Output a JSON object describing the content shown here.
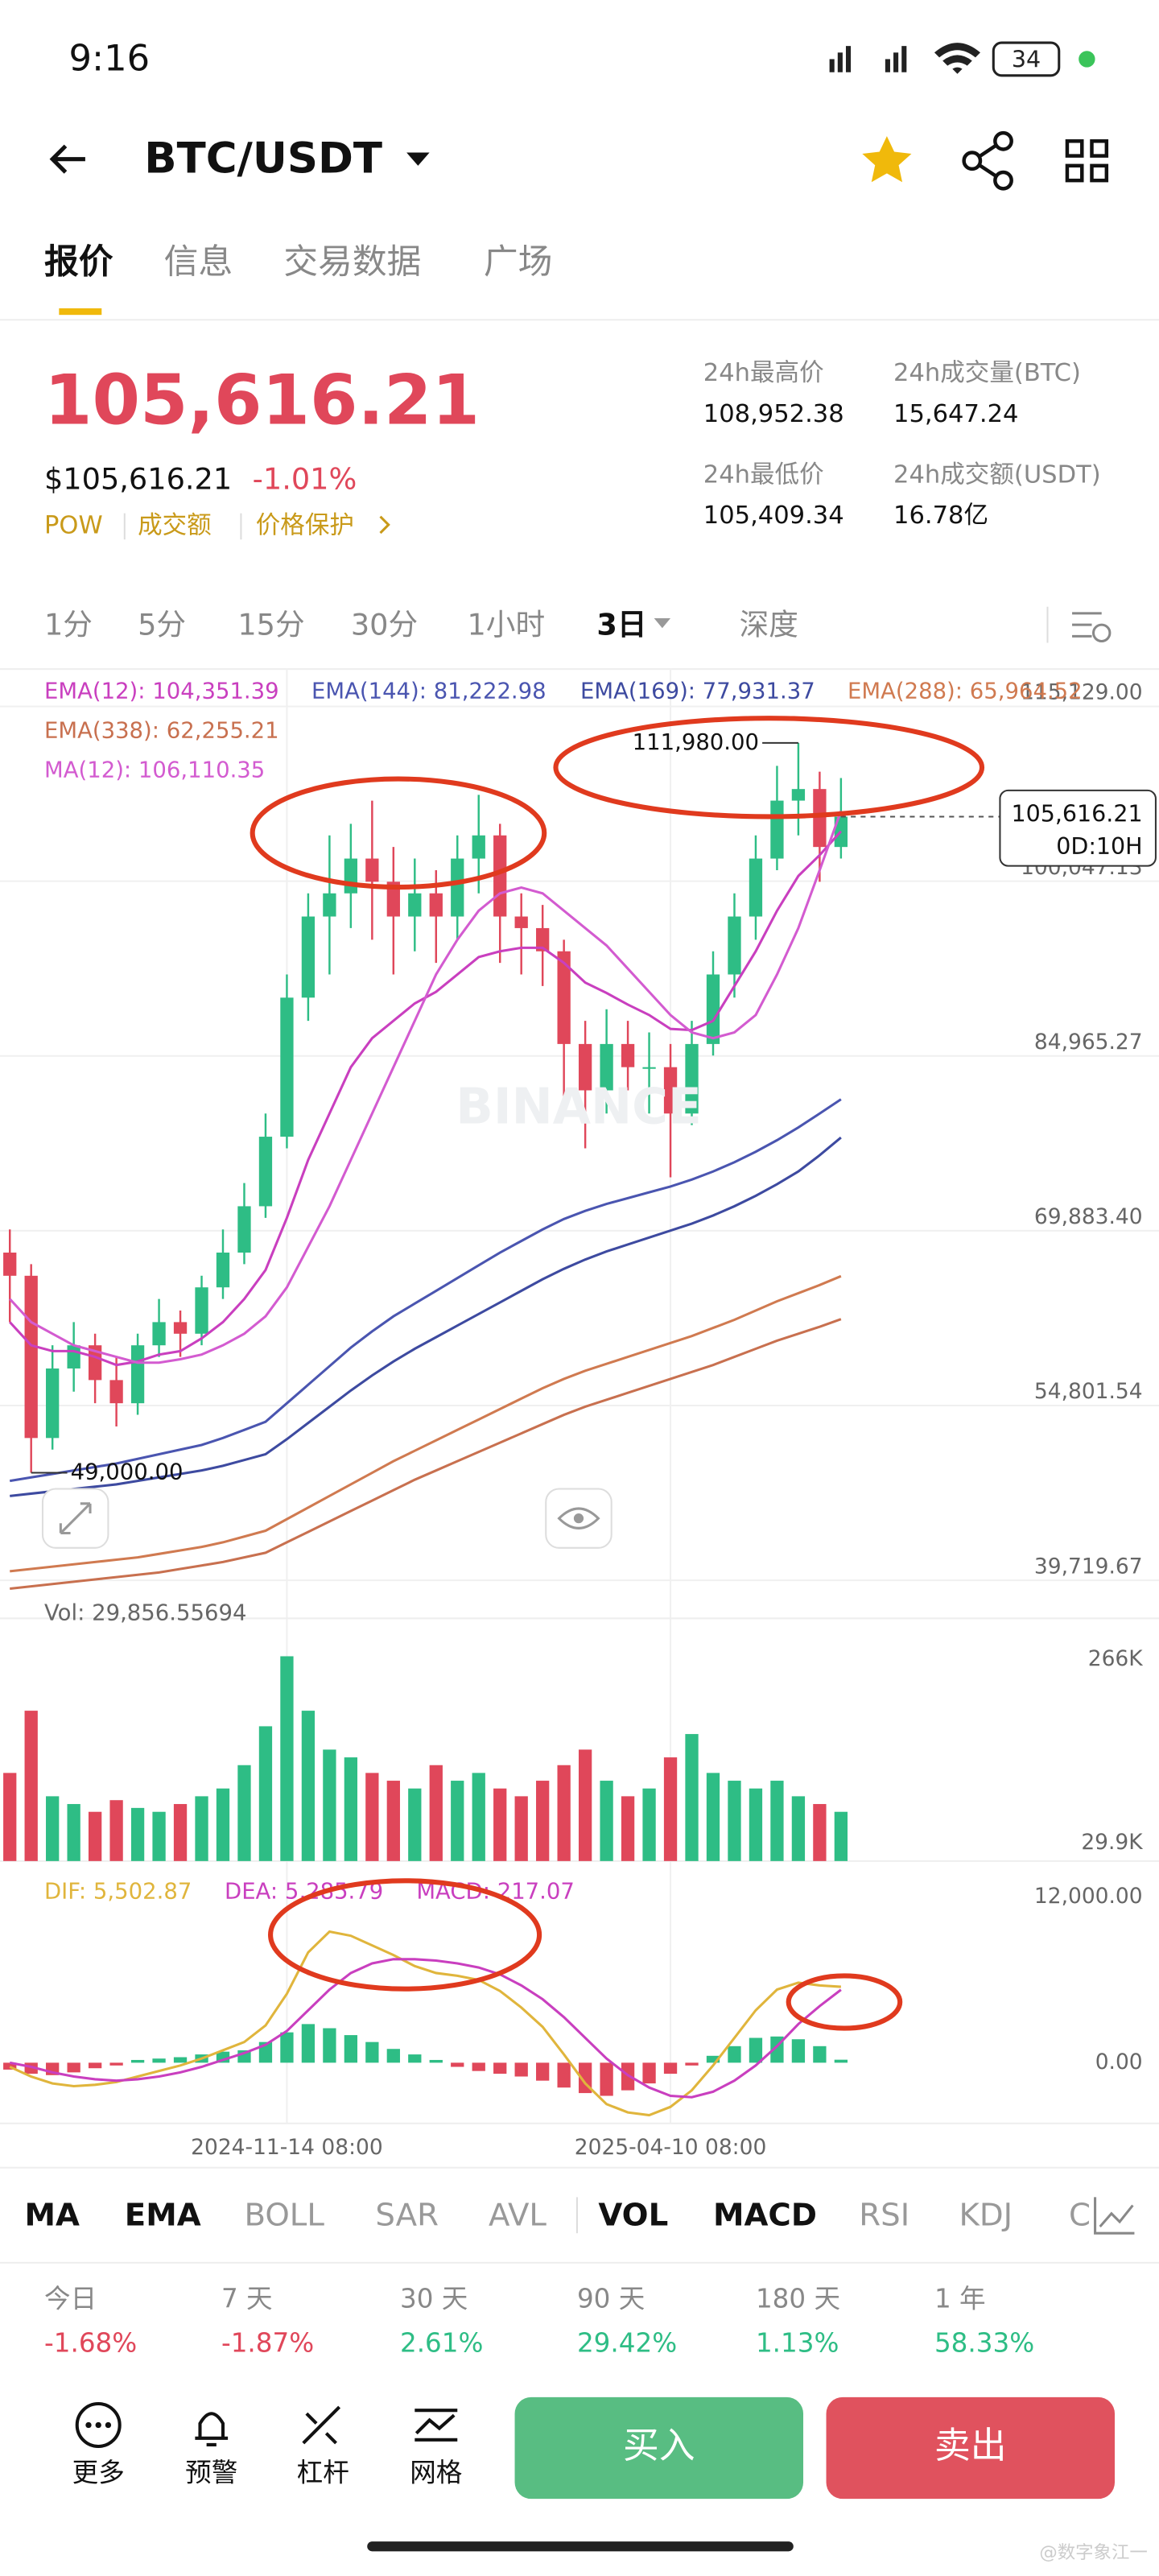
{
  "status": {
    "time": "9:16",
    "battery": "34"
  },
  "header": {
    "pair": "BTC/USDT"
  },
  "tabs": [
    "报价",
    "信息",
    "交易数据",
    "广场"
  ],
  "price": {
    "last": "105,616.21",
    "usd": "$105,616.21",
    "change": "-1.01%",
    "tags": [
      "POW",
      "成交额",
      "价格保护"
    ]
  },
  "stats": [
    {
      "label": "24h最高价",
      "value": "108,952.38"
    },
    {
      "label": "24h成交量(BTC)",
      "value": "15,647.24"
    },
    {
      "label": "24h最低价",
      "value": "105,409.34"
    },
    {
      "label": "24h成交额(USDT)",
      "value": "16.78亿"
    }
  ],
  "intervals": [
    "1分",
    "5分",
    "15分",
    "30分",
    "1小时",
    "3日",
    "深度"
  ],
  "chart_data": {
    "type": "candlestick",
    "watermark": "BINANCE",
    "up_color": "#2ebd85",
    "down_color": "#e0475a",
    "ylim": [
      38134,
      118354
    ],
    "yticks": [
      {
        "value": 39719.67,
        "label": "39,719.67"
      },
      {
        "value": 54801.54,
        "label": "54,801.54"
      },
      {
        "value": 69883.4,
        "label": "69,883.40"
      },
      {
        "value": 84965.27,
        "label": "84,965.27"
      },
      {
        "value": 100047.13,
        "label": "100,047.13"
      },
      {
        "value": 115129,
        "label": "115,129.00"
      }
    ],
    "categories": [
      null,
      null,
      null,
      null,
      null,
      null,
      null,
      null,
      null,
      null,
      null,
      null,
      null,
      "2024-11-14 08:00",
      null,
      null,
      null,
      null,
      null,
      null,
      null,
      null,
      null,
      null,
      null,
      null,
      null,
      null,
      null,
      null,
      null,
      "2025-04-10 08:00",
      null,
      null,
      null,
      null,
      null,
      null,
      null,
      null
    ],
    "candles": [
      [
        68000,
        70000,
        62000,
        66000
      ],
      [
        66000,
        67000,
        49000,
        52000
      ],
      [
        52000,
        60000,
        51000,
        58000
      ],
      [
        58000,
        62000,
        56000,
        60000
      ],
      [
        60000,
        61000,
        55000,
        57000
      ],
      [
        57000,
        59000,
        53000,
        55000
      ],
      [
        55000,
        61000,
        54000,
        60000
      ],
      [
        60000,
        64000,
        59000,
        62000
      ],
      [
        62000,
        63000,
        59000,
        61000
      ],
      [
        61000,
        66000,
        60000,
        65000
      ],
      [
        65000,
        70000,
        64000,
        68000
      ],
      [
        68000,
        74000,
        67000,
        72000
      ],
      [
        72000,
        80000,
        71000,
        78000
      ],
      [
        78000,
        92000,
        77000,
        90000
      ],
      [
        90000,
        99000,
        88000,
        97000
      ],
      [
        97000,
        104000,
        92000,
        99000
      ],
      [
        99000,
        105000,
        96000,
        102000
      ],
      [
        102000,
        107000,
        95000,
        100000
      ],
      [
        100000,
        103000,
        92000,
        97000
      ],
      [
        97000,
        102000,
        94000,
        99000
      ],
      [
        99000,
        101000,
        93000,
        97000
      ],
      [
        97000,
        104000,
        95000,
        102000
      ],
      [
        102000,
        107500,
        99000,
        104000
      ],
      [
        104000,
        105000,
        93000,
        97000
      ],
      [
        97000,
        99000,
        92000,
        96000
      ],
      [
        96000,
        98000,
        91000,
        94000
      ],
      [
        94000,
        95000,
        80000,
        86000
      ],
      [
        86000,
        88000,
        77000,
        82000
      ],
      [
        82000,
        89000,
        80000,
        86000
      ],
      [
        86000,
        88000,
        82000,
        84000
      ],
      [
        84000,
        87000,
        80000,
        84000
      ],
      [
        84000,
        86000,
        74500,
        80000
      ],
      [
        80000,
        88000,
        79000,
        86000
      ],
      [
        86000,
        94000,
        85000,
        92000
      ],
      [
        92000,
        99000,
        90000,
        97000
      ],
      [
        97000,
        104000,
        95000,
        102000
      ],
      [
        102000,
        110000,
        101000,
        107000
      ],
      [
        107000,
        111980,
        104000,
        108000
      ],
      [
        108000,
        109500,
        100000,
        103000
      ],
      [
        103000,
        108952.38,
        102000,
        105616.21
      ]
    ],
    "high_label": {
      "value": 111980,
      "label": "111,980.00",
      "index": 37
    },
    "low_label": {
      "value": 49000,
      "label": "49,000.00",
      "index": 1
    },
    "last_price": {
      "value": 105616.21,
      "label": "105,616.21",
      "countdown": "0D:10H"
    },
    "series": [
      {
        "name": "EMA(12): 104,351.39",
        "color": "#c93fbf",
        "values": [
          62000,
          60000,
          59500,
          59500,
          59000,
          58300,
          58600,
          59200,
          59500,
          60600,
          62000,
          64000,
          66500,
          71000,
          76000,
          80000,
          84000,
          86500,
          88000,
          89500,
          90500,
          92000,
          93500,
          94000,
          94300,
          94300,
          93000,
          91300,
          90400,
          89400,
          88500,
          87300,
          87200,
          88000,
          91000,
          94000,
          97500,
          100500,
          102300,
          104351.39
        ]
      },
      {
        "name": "EMA(144): 81,222.98",
        "color": "#4a55b0",
        "values": [
          48300,
          48600,
          48900,
          49200,
          49500,
          49800,
          50200,
          50600,
          51000,
          51400,
          52000,
          52700,
          53400,
          55000,
          56600,
          58200,
          59800,
          61200,
          62500,
          63600,
          64700,
          65800,
          66900,
          68000,
          69000,
          70000,
          70900,
          71600,
          72200,
          72700,
          73200,
          73700,
          74300,
          75000,
          75800,
          76700,
          77700,
          78800,
          80000,
          81222.98
        ]
      },
      {
        "name": "EMA(169): 77,931.37",
        "color": "#3d4aa0",
        "values": [
          47000,
          47200,
          47400,
          47600,
          47800,
          48000,
          48300,
          48600,
          48900,
          49200,
          49600,
          50100,
          50600,
          51900,
          53300,
          54700,
          56100,
          57400,
          58600,
          59700,
          60700,
          61700,
          62700,
          63700,
          64700,
          65700,
          66600,
          67400,
          68100,
          68700,
          69300,
          69900,
          70500,
          71200,
          72000,
          72900,
          73900,
          75000,
          76400,
          77931.37
        ]
      },
      {
        "name": "EMA(288): 65,964.52",
        "color": "#d07a50",
        "values": [
          40500,
          40700,
          40900,
          41100,
          41300,
          41500,
          41700,
          42000,
          42300,
          42600,
          43000,
          43500,
          44000,
          45000,
          46000,
          47000,
          48000,
          49000,
          50000,
          50900,
          51800,
          52700,
          53600,
          54500,
          55400,
          56300,
          57100,
          57800,
          58400,
          59000,
          59600,
          60200,
          60800,
          61500,
          62200,
          63000,
          63800,
          64500,
          65200,
          65964.52
        ]
      },
      {
        "name": "EMA(338): 62,255.21",
        "color": "#c8704f",
        "values": [
          39000,
          39200,
          39400,
          39600,
          39800,
          40000,
          40200,
          40400,
          40700,
          41000,
          41300,
          41700,
          42100,
          43000,
          43900,
          44800,
          45700,
          46600,
          47500,
          48400,
          49200,
          50000,
          50800,
          51600,
          52400,
          53200,
          54000,
          54700,
          55300,
          55900,
          56500,
          57100,
          57700,
          58300,
          59000,
          59700,
          60400,
          61000,
          61600,
          62255.21
        ]
      },
      {
        "name": "MA(12): 106,110.35",
        "color": "#d35bd0",
        "values": [
          64000,
          62000,
          61000,
          60000,
          59500,
          59000,
          58500,
          58500,
          58800,
          59200,
          60000,
          61000,
          62500,
          65000,
          68500,
          72000,
          76000,
          80000,
          84000,
          88000,
          92000,
          95000,
          97500,
          99000,
          99500,
          99000,
          97500,
          96000,
          94500,
          92500,
          90500,
          88500,
          87000,
          86500,
          87000,
          88500,
          92000,
          96000,
          101000,
          106110.35
        ]
      }
    ],
    "volume": {
      "label": "Vol: 29,856.55694",
      "ylim": [
        6711,
        301840
      ],
      "yticks": [
        {
          "value": 29900,
          "label": "29.9K"
        },
        {
          "value": 266000,
          "label": "266K"
        }
      ],
      "values": [
        120000,
        200000,
        90000,
        80000,
        70000,
        85000,
        75000,
        70000,
        80000,
        90000,
        100000,
        130000,
        180000,
        270000,
        200000,
        150000,
        140000,
        120000,
        110000,
        100000,
        130000,
        110000,
        120000,
        100000,
        90000,
        110000,
        130000,
        150000,
        110000,
        90000,
        100000,
        140000,
        170000,
        120000,
        110000,
        100000,
        110000,
        90000,
        80000,
        70000
      ]
    },
    "macd": {
      "ylim": [
        -4396,
        13426
      ],
      "yticks": [
        {
          "value": 0,
          "label": "0.00"
        },
        {
          "value": 12000,
          "label": "12,000.00"
        }
      ],
      "hist_name": "MACD: 217.07",
      "hist": [
        -500,
        -800,
        -900,
        -700,
        -400,
        -200,
        200,
        300,
        400,
        600,
        800,
        900,
        1500,
        2200,
        2800,
        2500,
        2000,
        1500,
        1000,
        600,
        200,
        -300,
        -600,
        -800,
        -1000,
        -1300,
        -1800,
        -2200,
        -2400,
        -2000,
        -1500,
        -800,
        -200,
        500,
        1200,
        1800,
        1900,
        1700,
        1200,
        217.07
      ],
      "lines": [
        {
          "name": "DIF: 5,502.87",
          "color": "#e0b53c",
          "values": [
            -300,
            -1000,
            -1500,
            -1700,
            -1600,
            -1400,
            -1000,
            -600,
            -200,
            300,
            900,
            1500,
            2700,
            5000,
            8000,
            9500,
            9200,
            8500,
            7800,
            7000,
            6500,
            6300,
            6000,
            5200,
            4000,
            2600,
            600,
            -1500,
            -3000,
            -3600,
            -3800,
            -3200,
            -2000,
            -200,
            1800,
            3800,
            5300,
            5800,
            5600,
            5502.87
          ]
        },
        {
          "name": "DEA: 5,285.79",
          "color": "#c93fbf",
          "values": [
            0,
            -300,
            -700,
            -1000,
            -1200,
            -1300,
            -1200,
            -1000,
            -700,
            -300,
            200,
            700,
            1300,
            2300,
            3800,
            5300,
            6500,
            7200,
            7500,
            7500,
            7400,
            7200,
            6900,
            6400,
            5600,
            4600,
            3300,
            1800,
            300,
            -900,
            -1800,
            -2400,
            -2500,
            -2100,
            -1300,
            -200,
            1200,
            2800,
            4100,
            5285.79
          ]
        }
      ]
    }
  },
  "indicators": [
    {
      "label": "MA",
      "active": true
    },
    {
      "label": "EMA",
      "active": true
    },
    {
      "label": "BOLL",
      "active": false
    },
    {
      "label": "SAR",
      "active": false
    },
    {
      "label": "AVL",
      "active": false
    },
    {
      "label": "VOL",
      "active": true
    },
    {
      "label": "MACD",
      "active": true
    },
    {
      "label": "RSI",
      "active": false
    },
    {
      "label": "KDJ",
      "active": false
    },
    {
      "label": "C",
      "active": false
    }
  ],
  "performance": [
    {
      "period": "今日",
      "change": "-1.68%"
    },
    {
      "period": "7 天",
      "change": "-1.87%"
    },
    {
      "period": "30 天",
      "change": "2.61%"
    },
    {
      "period": "90 天",
      "change": "29.42%"
    },
    {
      "period": "180 天",
      "change": "1.13%"
    },
    {
      "period": "1 年",
      "change": "58.33%"
    }
  ],
  "bottom": {
    "tools": [
      "更多",
      "预警",
      "杠杆",
      "网格"
    ],
    "buy": "买入",
    "sell": "卖出",
    "watermark": "@数字象江一"
  }
}
